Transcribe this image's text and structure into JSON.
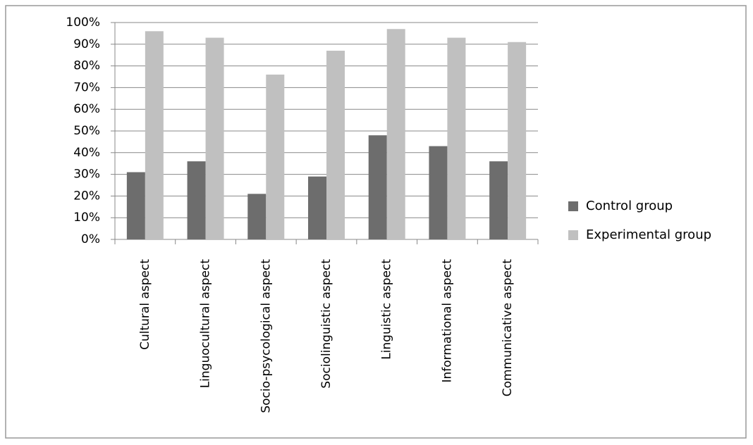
{
  "chart_data": {
    "type": "bar",
    "categories": [
      "Cultural aspect",
      "Linguocultural aspect",
      "Socio-psycological aspect",
      "Sociolinguistic aspect",
      "Linguistic aspect",
      "Informational aspect",
      "Communicative aspect"
    ],
    "series": [
      {
        "name": "Control group",
        "color": "#6d6d6d",
        "values": [
          31,
          36,
          21,
          29,
          48,
          43,
          36
        ]
      },
      {
        "name": "Experimental group",
        "color": "#c0c0c0",
        "values": [
          96,
          93,
          76,
          87,
          97,
          93,
          91
        ]
      }
    ],
    "ylim": [
      0,
      100
    ],
    "yticks": [
      {
        "value": 0,
        "label": "0%"
      },
      {
        "value": 10,
        "label": "10%"
      },
      {
        "value": 20,
        "label": "20%"
      },
      {
        "value": 30,
        "label": "30%"
      },
      {
        "value": 40,
        "label": "40%"
      },
      {
        "value": 50,
        "label": "50%"
      },
      {
        "value": 60,
        "label": "60%"
      },
      {
        "value": 70,
        "label": "70%"
      },
      {
        "value": 80,
        "label": "80%"
      },
      {
        "value": 90,
        "label": "90%"
      },
      {
        "value": 100,
        "label": "100%"
      }
    ],
    "grid": true,
    "legend": "right"
  }
}
